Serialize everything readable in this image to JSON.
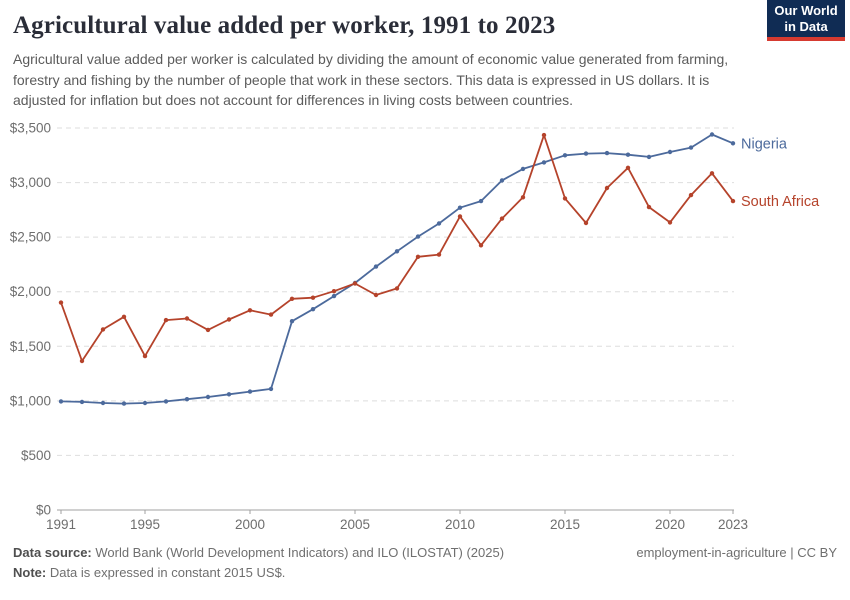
{
  "header": {
    "title": "Agricultural value added per worker, 1991 to 2023",
    "subtitle": "Agricultural value added per worker is calculated by dividing the amount of economic value generated from farming, forestry and fishing by the number of people that work in these sectors. This data is expressed in US dollars. It is adjusted for inflation but does not account for differences in living costs between countries.",
    "logo": {
      "line1": "Our World",
      "line2": "in Data"
    }
  },
  "chart_data": {
    "type": "line",
    "title": "Agricultural value added per worker, 1991 to 2023",
    "xlabel": "",
    "ylabel": "",
    "ylim": [
      0,
      3500
    ],
    "ytick_step": 500,
    "ytick_labels": [
      "$0",
      "$500",
      "$1,000",
      "$1,500",
      "$2,000",
      "$2,500",
      "$3,000",
      "$3,500"
    ],
    "xticks": [
      1991,
      1995,
      2000,
      2005,
      2010,
      2015,
      2020,
      2023
    ],
    "grid": "horizontal-dashed",
    "legend_position": "right-of-line-ends",
    "x": [
      1991,
      1992,
      1993,
      1994,
      1995,
      1996,
      1997,
      1998,
      1999,
      2000,
      2001,
      2002,
      2003,
      2004,
      2005,
      2006,
      2007,
      2008,
      2009,
      2010,
      2011,
      2012,
      2013,
      2014,
      2015,
      2016,
      2017,
      2018,
      2019,
      2020,
      2021,
      2022,
      2023
    ],
    "series": [
      {
        "name": "Nigeria",
        "color": "#4c6a9c",
        "values": [
          995,
          990,
          980,
          975,
          980,
          995,
          1015,
          1035,
          1060,
          1085,
          1110,
          1730,
          1840,
          1960,
          2080,
          2230,
          2370,
          2505,
          2625,
          2770,
          2830,
          3020,
          3125,
          3185,
          3250,
          3265,
          3270,
          3255,
          3235,
          3280,
          3320,
          3440,
          3360
        ]
      },
      {
        "name": "South Africa",
        "color": "#b5432b",
        "values": [
          1900,
          1365,
          1655,
          1770,
          1410,
          1740,
          1755,
          1650,
          1745,
          1830,
          1790,
          1935,
          1945,
          2005,
          2075,
          1970,
          2030,
          2320,
          2340,
          2690,
          2425,
          2670,
          2865,
          3435,
          2855,
          2630,
          2950,
          3135,
          2775,
          2635,
          2885,
          3085,
          2830
        ]
      }
    ]
  },
  "footer": {
    "source_label": "Data source:",
    "source_text": " World Bank (World Development Indicators) and ILO (ILOSTAT) (2025)",
    "note_label": "Note:",
    "note_text": " Data is expressed in constant 2015 US$.",
    "right_text": "employment-in-agriculture | CC BY"
  },
  "colors": {
    "grid": "#dedede",
    "axis": "#a1a1a1",
    "tick_label": "#6e6e6e",
    "logo_bg": "#102c54",
    "logo_bar": "#d63a30"
  }
}
